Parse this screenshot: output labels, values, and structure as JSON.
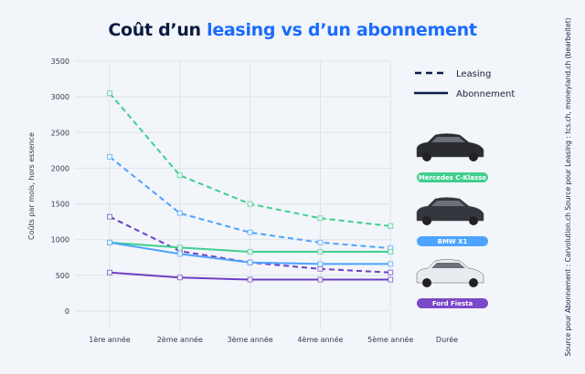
{
  "chart_data": {
    "type": "line",
    "title_part1": "Coût d’un ",
    "title_part2": "leasing vs d’un abonnement",
    "ylabel": "Coûts par mois, hors essence",
    "xlabel": "Durée",
    "categories": [
      "1ère année",
      "2ème année",
      "3ème année",
      "4ème année",
      "5ème année"
    ],
    "ylim": [
      0,
      3500
    ],
    "yticks": [
      0,
      500,
      1000,
      1500,
      2000,
      2500,
      3000,
      3500
    ],
    "grid": true,
    "legend": {
      "placement": "right",
      "items": [
        {
          "label": "Leasing",
          "style": "dashed"
        },
        {
          "label": "Abonnement",
          "style": "solid"
        }
      ]
    },
    "series": [
      {
        "car": "Mercedes C-Klasse",
        "type": "Leasing",
        "color": "#3ecf8e",
        "dashed": true,
        "values": [
          3050,
          1900,
          1500,
          1300,
          1190
        ]
      },
      {
        "car": "BMW X1",
        "type": "Leasing",
        "color": "#4da3ff",
        "dashed": true,
        "values": [
          2160,
          1370,
          1100,
          960,
          880
        ]
      },
      {
        "car": "Ford Fiesta",
        "type": "Leasing",
        "color": "#6c3fc4",
        "dashed": true,
        "values": [
          1320,
          840,
          680,
          590,
          540
        ]
      },
      {
        "car": "Mercedes C-Klasse",
        "type": "Abonnement",
        "color": "#3ecf8e",
        "dashed": false,
        "values": [
          960,
          890,
          830,
          830,
          830
        ]
      },
      {
        "car": "BMW X1",
        "type": "Abonnement",
        "color": "#4da3ff",
        "dashed": false,
        "values": [
          960,
          800,
          680,
          660,
          660
        ]
      },
      {
        "car": "Ford Fiesta",
        "type": "Abonnement",
        "color": "#6c3fc4",
        "dashed": false,
        "values": [
          540,
          470,
          440,
          440,
          440
        ]
      }
    ],
    "cars": [
      {
        "label": "Mercedes C-Klasse",
        "color": "#3ecf8e",
        "body": "#2a2c31"
      },
      {
        "label": "BMW X1",
        "color": "#4da3ff",
        "body": "#33363c"
      },
      {
        "label": "Ford Fiesta",
        "color": "#7a48c8",
        "body": "#e9ecef"
      }
    ],
    "sources": "Source pour Abonnement : Carvolution.ch     Source pour Leasing : tcs.ch, moneyland.ch (bearbeitet)"
  }
}
